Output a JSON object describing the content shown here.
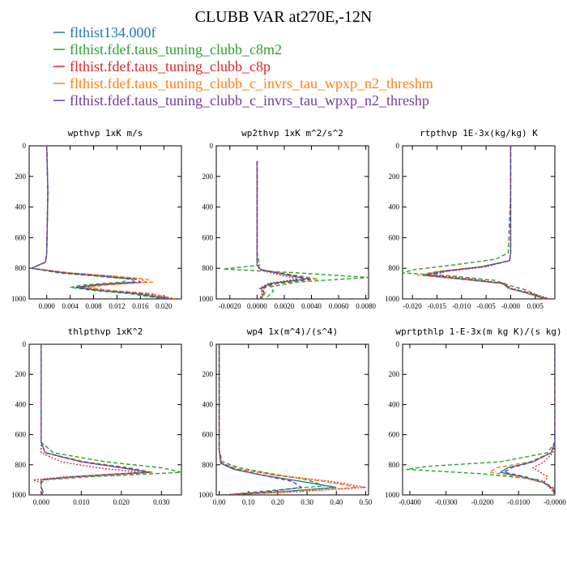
{
  "figure": {
    "title": "CLUBB VAR at270E,-12N"
  },
  "legend": [
    {
      "label": "flthist134.000f",
      "color": "#1f77b4",
      "dash": "solid"
    },
    {
      "label": "flthist.fdef.taus_tuning_clubb_c8m2",
      "color": "#2ca02c",
      "dash": "dash"
    },
    {
      "label": "flthist.fdef.taus_tuning_clubb_c8p",
      "color": "#d62728",
      "dash": "dot"
    },
    {
      "label": "flthist.fdef.taus_tuning_clubb_c_invrs_tau_wpxp_n2_threshm",
      "color": "#ff7f0e",
      "dash": "dash"
    },
    {
      "label": "flthist.fdef.taus_tuning_clubb_c_invrs_tau_wpxp_n2_threshp",
      "color": "#6a3d9a",
      "dash": "dash"
    }
  ],
  "chart_data": [
    {
      "type": "line",
      "title": "wpthvp  1xK m/s",
      "xlim": [
        -0.003,
        0.023
      ],
      "ylim": [
        1000,
        0
      ],
      "xticks": [
        0.0,
        0.004,
        0.008,
        0.012,
        0.016,
        0.02
      ],
      "xticklabels": [
        "0.000",
        "0.004",
        "0.008",
        "0.012",
        "0.016",
        "0.020"
      ],
      "yticks": [
        0,
        200,
        400,
        600,
        800,
        1000
      ],
      "series": [
        {
          "y": [
            0,
            300,
            700,
            760,
            800,
            830,
            850,
            870,
            890,
            910,
            925,
            945,
            965,
            1000
          ],
          "x": [
            0.0,
            0.0002,
            0.0,
            -0.0002,
            -0.0026,
            0.003,
            0.009,
            0.0145,
            0.015,
            0.008,
            0.005,
            0.009,
            0.015,
            0.021
          ]
        },
        {
          "y": [
            0,
            300,
            700,
            760,
            800,
            830,
            850,
            870,
            890,
            910,
            925,
            945,
            965,
            1000
          ],
          "x": [
            0.0,
            0.0002,
            0.0,
            -0.0002,
            -0.0026,
            0.002,
            0.008,
            0.014,
            0.013,
            0.006,
            0.004,
            0.008,
            0.014,
            0.02
          ]
        },
        {
          "y": [
            0,
            300,
            700,
            760,
            800,
            830,
            850,
            870,
            890,
            910,
            925,
            945,
            965,
            1000
          ],
          "x": [
            0.0,
            0.0002,
            0.0,
            -0.0002,
            -0.0026,
            0.004,
            0.011,
            0.016,
            0.017,
            0.009,
            0.006,
            0.01,
            0.017,
            0.022
          ]
        },
        {
          "y": [
            0,
            300,
            700,
            760,
            800,
            830,
            850,
            870,
            890,
            910,
            925,
            945,
            965,
            1000
          ],
          "x": [
            0.0,
            0.0002,
            0.0,
            -0.0002,
            -0.0026,
            0.004,
            0.011,
            0.017,
            0.018,
            0.01,
            0.007,
            0.011,
            0.018,
            0.022
          ]
        },
        {
          "y": [
            0,
            300,
            700,
            760,
            800,
            830,
            850,
            870,
            890,
            910,
            925,
            945,
            965,
            1000
          ],
          "x": [
            0.0,
            0.0002,
            0.0,
            -0.0002,
            -0.0026,
            0.003,
            0.009,
            0.015,
            0.016,
            0.008,
            0.005,
            0.009,
            0.016,
            0.021
          ]
        }
      ]
    },
    {
      "type": "line",
      "title": "wp2thvp  1xK m^2/s^2",
      "xlim": [
        -0.003,
        0.0082
      ],
      "ylim": [
        1000,
        0
      ],
      "xticks": [
        -0.002,
        0.0,
        0.002,
        0.004,
        0.006,
        0.008
      ],
      "xticklabels": [
        "-0.0020",
        "0.0000",
        "0.0020",
        "0.0040",
        "0.0060",
        "0.0080"
      ],
      "yticks": [
        0,
        200,
        400,
        600,
        800,
        1000
      ],
      "series": [
        {
          "y": [
            100,
            300,
            700,
            780,
            810,
            840,
            870,
            900,
            930,
            960,
            1000
          ],
          "x": [
            0.0,
            0.0,
            0.0,
            0.0,
            0.0003,
            0.002,
            0.0036,
            0.001,
            0.0003,
            0.0005,
            0.0003
          ]
        },
        {
          "y": [
            100,
            300,
            700,
            780,
            805,
            830,
            860,
            890,
            920,
            950,
            1000
          ],
          "x": [
            0.0,
            0.0,
            0.0,
            0.0002,
            -0.0025,
            0.003,
            0.0082,
            0.003,
            0.001,
            0.0012,
            0.0006
          ]
        },
        {
          "y": [
            100,
            300,
            700,
            780,
            810,
            840,
            870,
            900,
            930,
            960,
            1000
          ],
          "x": [
            0.0,
            0.0,
            0.0,
            0.0,
            0.0002,
            0.0015,
            0.003,
            0.0008,
            0.0002,
            0.0004,
            0.0002
          ]
        },
        {
          "y": [
            100,
            300,
            700,
            780,
            810,
            840,
            870,
            900,
            930,
            960,
            1000
          ],
          "x": [
            0.0,
            0.0,
            0.0,
            0.0,
            0.0004,
            0.0025,
            0.0045,
            0.0015,
            0.0005,
            0.0006,
            0.0004
          ]
        },
        {
          "y": [
            100,
            300,
            700,
            780,
            810,
            840,
            870,
            900,
            930,
            960,
            1000
          ],
          "x": [
            0.0,
            0.0,
            0.0,
            0.0,
            0.0003,
            0.0022,
            0.004,
            0.0012,
            0.0004,
            0.0005,
            0.0003
          ]
        }
      ]
    },
    {
      "type": "line",
      "title": "rtpthvp  1E-3x(kg/kg) K",
      "xlim": [
        -0.022,
        0.009
      ],
      "ylim": [
        1000,
        0
      ],
      "xticks": [
        -0.02,
        -0.015,
        -0.01,
        -0.005,
        0.0,
        0.005
      ],
      "xticklabels": [
        "-0.020",
        "-0.015",
        "-0.010",
        "-0.005",
        "-0.000",
        "0.005"
      ],
      "yticks": [
        0,
        200,
        400,
        600,
        800,
        1000
      ],
      "series": [
        {
          "y": [
            0,
            300,
            700,
            750,
            790,
            820,
            845,
            870,
            900,
            930,
            960,
            1000
          ],
          "x": [
            0.0,
            0.0,
            0.0,
            -0.0002,
            -0.006,
            -0.014,
            -0.018,
            -0.01,
            -0.0015,
            -0.0005,
            0.003,
            0.007
          ]
        },
        {
          "y": [
            0,
            300,
            700,
            740,
            780,
            810,
            830,
            850,
            880,
            910,
            940,
            1000
          ],
          "x": [
            0.0,
            0.0,
            -0.0005,
            -0.003,
            -0.012,
            -0.02,
            -0.022,
            -0.012,
            -0.003,
            -0.0005,
            0.003,
            0.007
          ]
        },
        {
          "y": [
            0,
            300,
            700,
            750,
            790,
            820,
            845,
            870,
            900,
            930,
            960,
            1000
          ],
          "x": [
            0.0,
            0.0,
            0.0,
            -0.0002,
            -0.005,
            -0.013,
            -0.016,
            -0.008,
            -0.001,
            0.0,
            0.004,
            0.008
          ]
        },
        {
          "y": [
            0,
            300,
            700,
            750,
            790,
            820,
            845,
            870,
            900,
            930,
            960,
            1000
          ],
          "x": [
            0.0,
            0.0,
            0.0,
            -0.0002,
            -0.006,
            -0.015,
            -0.019,
            -0.011,
            -0.0018,
            -0.0005,
            0.003,
            0.007
          ]
        },
        {
          "y": [
            0,
            300,
            700,
            750,
            790,
            820,
            845,
            870,
            900,
            930,
            960,
            1000
          ],
          "x": [
            0.0,
            0.0,
            0.0,
            -0.0002,
            -0.0055,
            -0.0135,
            -0.017,
            -0.009,
            -0.0012,
            -0.0003,
            0.0035,
            0.0075
          ]
        }
      ]
    },
    {
      "type": "line",
      "title": "thlpthvp  1xK^2",
      "xlim": [
        -0.003,
        0.035
      ],
      "ylim": [
        1000,
        0
      ],
      "xticks": [
        0.0,
        0.01,
        0.02,
        0.03
      ],
      "xticklabels": [
        "0.000",
        "0.010",
        "0.020",
        "0.030"
      ],
      "yticks": [
        0,
        200,
        400,
        600,
        800,
        1000
      ],
      "series": [
        {
          "y": [
            0,
            50,
            300,
            650,
            720,
            780,
            820,
            850,
            880,
            900,
            920,
            950,
            980,
            1000
          ],
          "x": [
            0.0,
            0.0,
            0.0,
            0.0,
            0.001,
            0.01,
            0.02,
            0.027,
            0.008,
            0.0,
            0.0,
            0.0,
            0.0005,
            0.0
          ]
        },
        {
          "y": [
            0,
            50,
            300,
            650,
            720,
            780,
            820,
            850,
            880,
            900,
            920,
            950,
            980,
            1000
          ],
          "x": [
            0.0,
            0.0,
            0.0,
            0.0,
            0.003,
            0.016,
            0.03,
            0.035,
            0.012,
            0.001,
            0.0,
            0.0,
            0.0005,
            0.0
          ]
        },
        {
          "y": [
            0,
            50,
            300,
            650,
            720,
            780,
            820,
            850,
            880,
            900,
            920,
            950,
            980,
            1000
          ],
          "x": [
            0.0,
            0.0,
            0.0,
            0.0,
            0.0,
            0.005,
            0.014,
            0.025,
            0.006,
            -0.002,
            0.0,
            0.0,
            0.0005,
            0.0
          ]
        },
        {
          "y": [
            0,
            50,
            300,
            650,
            720,
            780,
            820,
            850,
            880,
            900,
            920,
            950,
            980,
            1000
          ],
          "x": [
            0.0,
            0.0,
            0.0,
            0.0,
            0.001,
            0.011,
            0.022,
            0.028,
            0.009,
            0.0,
            0.0,
            0.0,
            0.0005,
            0.0
          ]
        },
        {
          "y": [
            0,
            50,
            300,
            650,
            720,
            780,
            820,
            850,
            880,
            900,
            920,
            950,
            980,
            1000
          ],
          "x": [
            0.0,
            0.0,
            0.0,
            0.0,
            0.001,
            0.01,
            0.021,
            0.027,
            0.008,
            0.0,
            0.0,
            0.0,
            0.0005,
            0.0
          ]
        }
      ]
    },
    {
      "type": "line",
      "title": "wp4  1x(m^4)/(s^4)",
      "xlim": [
        -0.01,
        0.51
      ],
      "ylim": [
        1000,
        0
      ],
      "xticks": [
        0.0,
        0.1,
        0.2,
        0.3,
        0.4,
        0.5
      ],
      "xticklabels": [
        "0.00",
        "0.10",
        "0.20",
        "0.30",
        "0.40",
        "0.50"
      ],
      "yticks": [
        0,
        200,
        400,
        600,
        800,
        1000
      ],
      "series": [
        {
          "y": [
            0,
            300,
            700,
            790,
            830,
            870,
            910,
            950,
            980,
            1000
          ],
          "x": [
            0.0,
            0.0,
            0.0,
            0.005,
            0.05,
            0.15,
            0.28,
            0.4,
            0.2,
            0.02
          ]
        },
        {
          "y": [
            0,
            300,
            700,
            780,
            820,
            860,
            900,
            940,
            975,
            1000
          ],
          "x": [
            0.0,
            0.0,
            0.0,
            0.01,
            0.07,
            0.18,
            0.3,
            0.36,
            0.15,
            0.02
          ]
        },
        {
          "y": [
            0,
            300,
            700,
            790,
            830,
            870,
            910,
            950,
            980,
            1000
          ],
          "x": [
            0.0,
            0.0,
            0.0,
            0.008,
            0.07,
            0.2,
            0.38,
            0.5,
            0.25,
            0.02
          ]
        },
        {
          "y": [
            0,
            300,
            700,
            790,
            830,
            870,
            910,
            950,
            980,
            1000
          ],
          "x": [
            0.0,
            0.0,
            0.0,
            0.008,
            0.07,
            0.19,
            0.36,
            0.47,
            0.23,
            0.02
          ]
        },
        {
          "y": [
            0,
            300,
            700,
            790,
            830,
            870,
            910,
            950,
            980,
            1000
          ],
          "x": [
            0.0,
            0.0,
            0.0,
            0.006,
            0.055,
            0.15,
            0.25,
            0.28,
            0.16,
            0.02
          ]
        }
      ]
    },
    {
      "type": "line",
      "title": "wprtpthlp  1-E-3x(m kg K)/(s kg)",
      "xlim": [
        -0.042,
        0.0
      ],
      "ylim": [
        1000,
        0
      ],
      "xticks": [
        -0.04,
        -0.03,
        -0.02,
        -0.01,
        0.0
      ],
      "xticklabels": [
        "-0.0400",
        "-0.0300",
        "-0.0200",
        "-0.0100",
        "-0.0000"
      ],
      "yticks": [
        0,
        200,
        400,
        600,
        800,
        1000
      ],
      "series": [
        {
          "y": [
            0,
            300,
            650,
            720,
            780,
            820,
            850,
            880,
            920,
            960,
            1000
          ],
          "x": [
            0.0,
            0.0,
            0.0,
            -0.001,
            -0.006,
            -0.013,
            -0.015,
            -0.009,
            -0.003,
            -0.0005,
            0.0
          ]
        },
        {
          "y": [
            0,
            300,
            650,
            720,
            780,
            810,
            830,
            860,
            900,
            950,
            1000
          ],
          "x": [
            0.0,
            0.0,
            0.0,
            -0.002,
            -0.015,
            -0.035,
            -0.041,
            -0.02,
            -0.004,
            -0.0005,
            0.0
          ]
        },
        {
          "y": [
            0,
            300,
            650,
            720,
            780,
            820,
            850,
            880,
            920,
            960,
            1000
          ],
          "x": [
            0.0,
            0.0,
            0.0,
            -0.0005,
            -0.003,
            -0.006,
            -0.004,
            -0.002,
            -0.003,
            -0.001,
            0.0
          ]
        },
        {
          "y": [
            0,
            300,
            650,
            720,
            780,
            820,
            850,
            880,
            920,
            960,
            1000
          ],
          "x": [
            0.0,
            0.0,
            0.0,
            -0.001,
            -0.007,
            -0.016,
            -0.018,
            -0.01,
            -0.003,
            -0.0005,
            0.0
          ]
        },
        {
          "y": [
            0,
            300,
            650,
            720,
            780,
            820,
            850,
            880,
            920,
            960,
            1000
          ],
          "x": [
            0.0,
            0.0,
            0.0,
            -0.001,
            -0.006,
            -0.012,
            -0.014,
            -0.008,
            -0.003,
            -0.0005,
            0.0
          ]
        }
      ]
    }
  ]
}
